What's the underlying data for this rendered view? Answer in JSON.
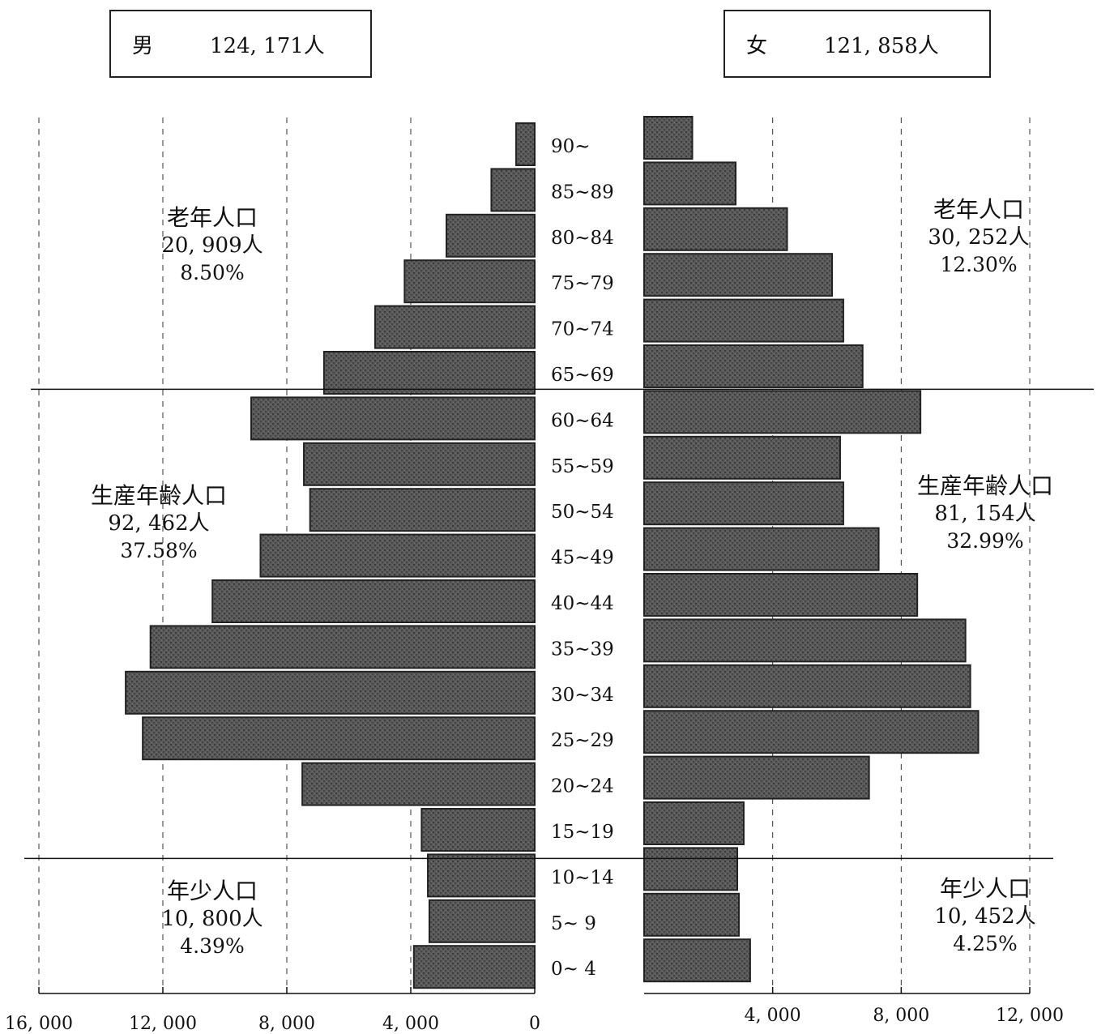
{
  "header": {
    "male": {
      "label": "男",
      "total": "124, 171人"
    },
    "female": {
      "label": "女",
      "total": "121, 858人"
    }
  },
  "groups": {
    "male": [
      {
        "name": "老年人口",
        "count": "20, 909人",
        "pct": "8.50%"
      },
      {
        "name": "生産年齢人口",
        "count": "92, 462人",
        "pct": "37.58%"
      },
      {
        "name": "年少人口",
        "count": "10, 800人",
        "pct": "4.39%"
      }
    ],
    "female": [
      {
        "name": "老年人口",
        "count": "30, 252人",
        "pct": "12.30%"
      },
      {
        "name": "生産年齢人口",
        "count": "81, 154人",
        "pct": "32.99%"
      },
      {
        "name": "年少人口",
        "count": "10, 452人",
        "pct": "4.25%"
      }
    ]
  },
  "chart_data": {
    "type": "bar",
    "orientation": "horizontal-pyramid",
    "categories": [
      "90~",
      "85~89",
      "80~84",
      "75~79",
      "70~74",
      "65~69",
      "60~64",
      "55~59",
      "50~54",
      "45~49",
      "40~44",
      "35~39",
      "30~34",
      "25~29",
      "20~24",
      "15~19",
      "10~14",
      "5~ 9",
      "0~ 4"
    ],
    "series": [
      {
        "name": "男",
        "values": [
          600,
          1400,
          2850,
          4200,
          5150,
          6800,
          9150,
          7450,
          7250,
          8850,
          10400,
          12400,
          13200,
          12650,
          7500,
          3650,
          3450,
          3400,
          3900
        ]
      },
      {
        "name": "女",
        "values": [
          1500,
          2850,
          4450,
          5850,
          6200,
          6800,
          8600,
          6100,
          6200,
          7300,
          8500,
          10000,
          10150,
          10400,
          7000,
          3100,
          2900,
          2950,
          3300
        ]
      }
    ],
    "male_axis": {
      "ticks": [
        16000,
        12000,
        8000,
        4000,
        0
      ],
      "tick_labels": [
        "16, 000",
        "12, 000",
        "8, 000",
        "4, 000",
        "0"
      ],
      "xlim": [
        16000,
        0
      ]
    },
    "female_axis": {
      "ticks": [
        4000,
        8000,
        12000
      ],
      "tick_labels": [
        "4, 000",
        "8, 000",
        "12, 000"
      ],
      "xlim": [
        0,
        12000
      ]
    },
    "group_dividers_after": [
      "65~69",
      "15~19"
    ],
    "grid": "dashed-vertical",
    "colors": {
      "bar_fill": "#555555",
      "bar_stroke": "#222222",
      "grid": "#333333"
    }
  }
}
